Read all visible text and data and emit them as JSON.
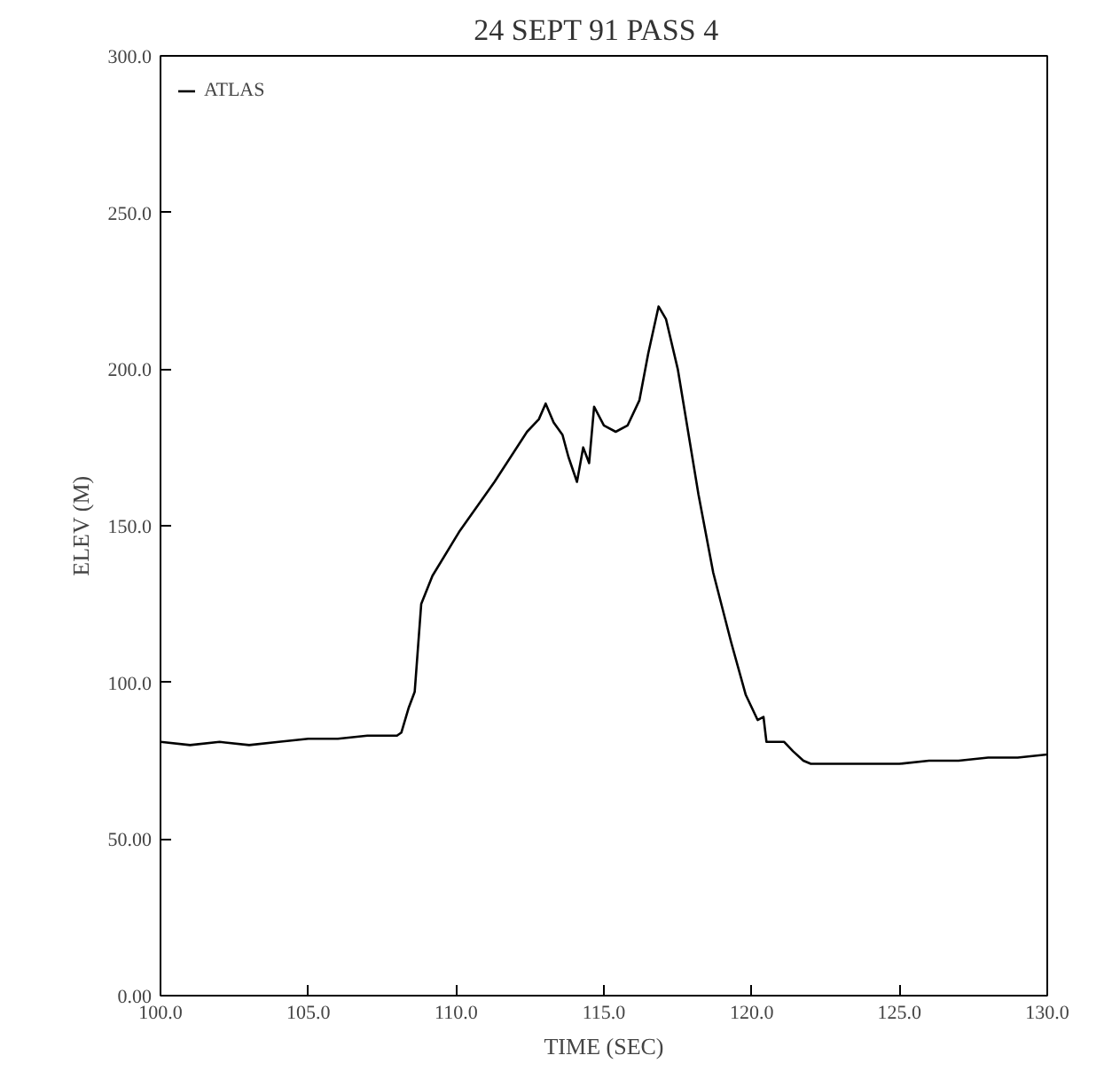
{
  "chart_data": {
    "type": "line",
    "title": "24 SEPT 91  PASS  4",
    "xlabel": "TIME (SEC)",
    "ylabel": "ELEV (M)",
    "xlim": [
      100,
      130
    ],
    "xticks": [
      {
        "value": 100,
        "label": "100.0"
      },
      {
        "value": 105,
        "label": "105.0"
      },
      {
        "value": 110,
        "label": "110.0"
      },
      {
        "value": 115,
        "label": "115.0"
      },
      {
        "value": 120,
        "label": "120.0"
      },
      {
        "value": 125,
        "label": "125.0"
      },
      {
        "value": 130,
        "label": "130.0"
      }
    ],
    "ylim": [
      0,
      300
    ],
    "yticks": [
      {
        "value": 0,
        "label": "0.00"
      },
      {
        "value": 50,
        "label": "50.00"
      },
      {
        "value": 100,
        "label": "100.0"
      },
      {
        "value": 150,
        "label": "150.0"
      },
      {
        "value": 200,
        "label": "200.0"
      },
      {
        "value": 250,
        "label": "250.0"
      },
      {
        "value": 300,
        "label": "300.0"
      }
    ],
    "grid": false,
    "legend": "top left",
    "marker": "none",
    "line_style": "solid",
    "series": [
      {
        "name": "ATLAS",
        "color": "#000000",
        "x": [
          100,
          101,
          102,
          103,
          104,
          105,
          106,
          107,
          108,
          108.15,
          108.4,
          108.6,
          108.82,
          109.2,
          110.1,
          111.3,
          112.4,
          112.8,
          113.03,
          113.3,
          113.6,
          113.8,
          114.09,
          114.3,
          114.5,
          114.67,
          115.0,
          115.4,
          115.8,
          116.2,
          116.5,
          116.85,
          117.1,
          117.5,
          118.2,
          118.7,
          119.3,
          119.8,
          120.2,
          120.4,
          120.5,
          121.1,
          121.4,
          121.75,
          122,
          123,
          124,
          125,
          126,
          127,
          128,
          129,
          130
        ],
        "values": [
          81,
          80,
          81,
          80,
          81,
          82,
          82,
          83,
          83,
          84,
          92,
          97,
          125,
          134,
          148,
          164,
          180,
          184,
          189,
          183,
          179,
          172,
          164,
          175,
          170,
          188,
          182,
          180,
          182,
          190,
          205,
          220,
          216,
          200,
          160,
          135,
          113,
          96,
          88,
          89,
          81,
          81,
          78,
          75,
          74,
          74,
          74,
          74,
          75,
          75,
          76,
          76,
          77
        ]
      }
    ]
  }
}
